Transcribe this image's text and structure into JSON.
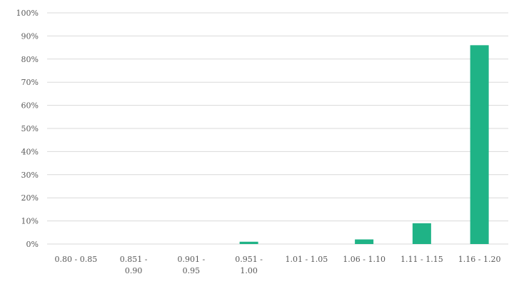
{
  "chart_data": {
    "type": "bar",
    "categories": [
      [
        "0.80 - 0.85"
      ],
      [
        "0.851 -",
        "0.90"
      ],
      [
        "0.901 -",
        "0.95"
      ],
      [
        "0.951 -",
        "1.00"
      ],
      [
        "1.01 - 1.05"
      ],
      [
        "1.06 - 1.10"
      ],
      [
        "1.11 - 1.15"
      ],
      [
        "1.16 - 1.20"
      ]
    ],
    "values": [
      0,
      0,
      0,
      1,
      0,
      2,
      9,
      86
    ],
    "ylim": [
      0,
      100
    ],
    "yticks": [
      "0%",
      "10%",
      "20%",
      "30%",
      "40%",
      "50%",
      "60%",
      "70%",
      "80%",
      "90%",
      "100%"
    ],
    "grid": true,
    "title": "",
    "xlabel": "",
    "ylabel": "",
    "bar_color": "#1fb386",
    "grid_color": "#d9d9d9",
    "text_color": "#595959"
  }
}
